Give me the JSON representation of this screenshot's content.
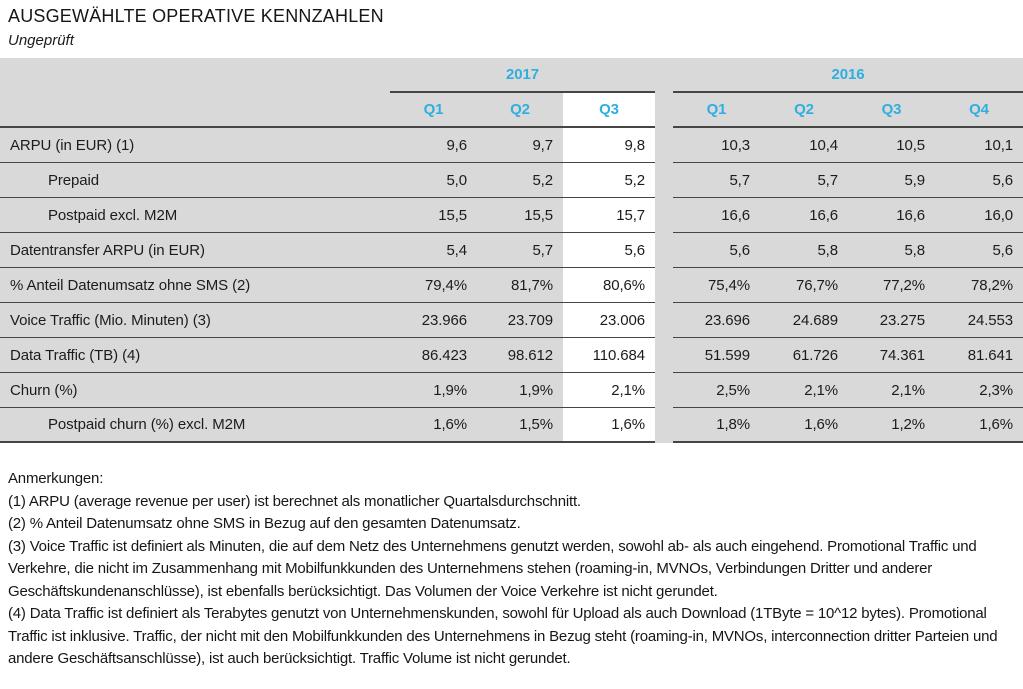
{
  "title": "AUSGEWÄHLTE OPERATIVE KENNZAHLEN",
  "subtitle": "Ungeprüft",
  "colors": {
    "accent_cyan": "#2fafe0",
    "row_gray": "#d9d9d9",
    "highlight_white": "#ffffff",
    "line_dark": "#454545"
  },
  "table": {
    "groups": [
      {
        "year": "2017",
        "quarters": [
          "Q1",
          "Q2",
          "Q3"
        ]
      },
      {
        "year": "2016",
        "quarters": [
          "Q1",
          "Q2",
          "Q3",
          "Q4"
        ]
      }
    ],
    "highlight": {
      "group": "2017",
      "quarter": "Q3"
    },
    "rows": [
      {
        "label": "ARPU (in EUR) (1)",
        "indent": false,
        "v2017": [
          "9,6",
          "9,7",
          "9,8"
        ],
        "v2016": [
          "10,3",
          "10,4",
          "10,5",
          "10,1"
        ]
      },
      {
        "label": "Prepaid",
        "indent": true,
        "v2017": [
          "5,0",
          "5,2",
          "5,2"
        ],
        "v2016": [
          "5,7",
          "5,7",
          "5,9",
          "5,6"
        ]
      },
      {
        "label": "Postpaid excl. M2M",
        "indent": true,
        "v2017": [
          "15,5",
          "15,5",
          "15,7"
        ],
        "v2016": [
          "16,6",
          "16,6",
          "16,6",
          "16,0"
        ]
      },
      {
        "label": "Datentransfer ARPU (in EUR)",
        "indent": false,
        "v2017": [
          "5,4",
          "5,7",
          "5,6"
        ],
        "v2016": [
          "5,6",
          "5,8",
          "5,8",
          "5,6"
        ]
      },
      {
        "label": "% Anteil Datenumsatz ohne SMS (2)",
        "indent": false,
        "v2017": [
          "79,4%",
          "81,7%",
          "80,6%"
        ],
        "v2016": [
          "75,4%",
          "76,7%",
          "77,2%",
          "78,2%"
        ]
      },
      {
        "label": "Voice Traffic (Mio. Minuten) (3)",
        "indent": false,
        "v2017": [
          "23.966",
          "23.709",
          "23.006"
        ],
        "v2016": [
          "23.696",
          "24.689",
          "23.275",
          "24.553"
        ]
      },
      {
        "label": "Data Traffic (TB) (4)",
        "indent": false,
        "v2017": [
          "86.423",
          "98.612",
          "110.684"
        ],
        "v2016": [
          "51.599",
          "61.726",
          "74.361",
          "81.641"
        ]
      },
      {
        "label": "Churn (%)",
        "indent": false,
        "v2017": [
          "1,9%",
          "1,9%",
          "2,1%"
        ],
        "v2016": [
          "2,5%",
          "2,1%",
          "2,1%",
          "2,3%"
        ]
      },
      {
        "label": "Postpaid churn (%) excl. M2M",
        "indent": true,
        "v2017": [
          "1,6%",
          "1,5%",
          "1,6%"
        ],
        "v2016": [
          "1,8%",
          "1,6%",
          "1,2%",
          "1,6%"
        ]
      }
    ]
  },
  "notes": {
    "heading": "Anmerkungen:",
    "items": [
      "(1) ARPU (average revenue per user) ist berechnet als monatlicher Quartalsdurchschnitt.",
      "(2) % Anteil Datenumsatz ohne SMS in Bezug auf den gesamten Datenumsatz.",
      "(3) Voice Traffic ist definiert als Minuten, die auf dem Netz des Unternehmens genutzt werden, sowohl ab- als auch eingehend. Promotional Traffic und Verkehre, die nicht im Zusammenhang mit Mobilfunkkunden des Unternehmens stehen (roaming-in, MVNOs, Verbindungen Dritter und anderer Geschäftskundenanschlüsse), ist ebenfalls berücksichtigt. Das Volumen der Voice Verkehre ist nicht gerundet.",
      "(4) Data Traffic ist definiert als Terabytes genutzt von Unternehmenskunden, sowohl für Upload als auch Download (1TByte = 10^12 bytes). Promotional Traffic ist inklusive. Traffic, der nicht mit den Mobilfunkkunden des Unternehmens in Bezug steht (roaming-in, MVNOs, interconnection dritter Parteien und andere Geschäftsanschlüsse), ist auch berücksichtigt. Traffic Volume ist nicht gerundet."
    ]
  }
}
